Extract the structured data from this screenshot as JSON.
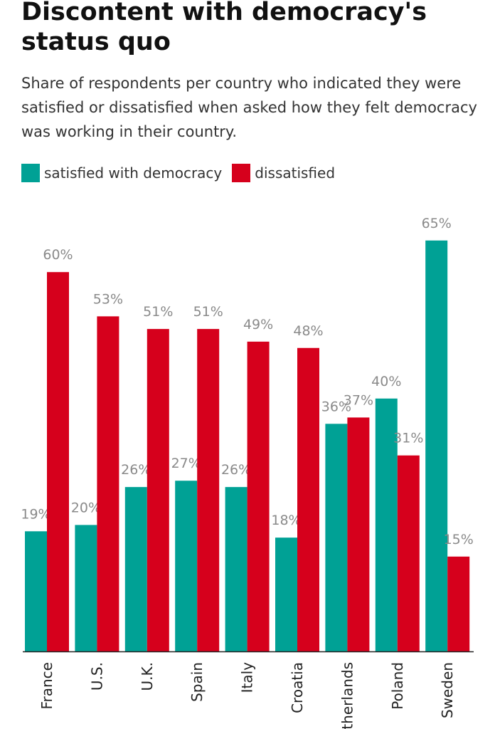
{
  "title": "Discontent with democracy's status quo",
  "subtitle": "Share of respondents per country who indicated they were satisfied or dissatisfied when asked how they felt democracy was working in their country.",
  "colors": {
    "satisfied": "#00a195",
    "dissatisfied": "#d6001c"
  },
  "chart_data": {
    "type": "bar",
    "title": "Discontent with democracy's status quo",
    "xlabel": "",
    "ylabel": "",
    "ylim": [
      0,
      65
    ],
    "grid": false,
    "legend": "top-left",
    "categories": [
      "France",
      "U.S.",
      "U.K.",
      "Spain",
      "Italy",
      "Croatia",
      "Netherlands",
      "Poland",
      "Sweden"
    ],
    "series": [
      {
        "name": "satisfied with democracy",
        "values": [
          19,
          20,
          26,
          27,
          26,
          18,
          36,
          40,
          65
        ]
      },
      {
        "name": "dissatisfied",
        "values": [
          60,
          53,
          51,
          51,
          49,
          48,
          37,
          31,
          15
        ]
      }
    ]
  }
}
